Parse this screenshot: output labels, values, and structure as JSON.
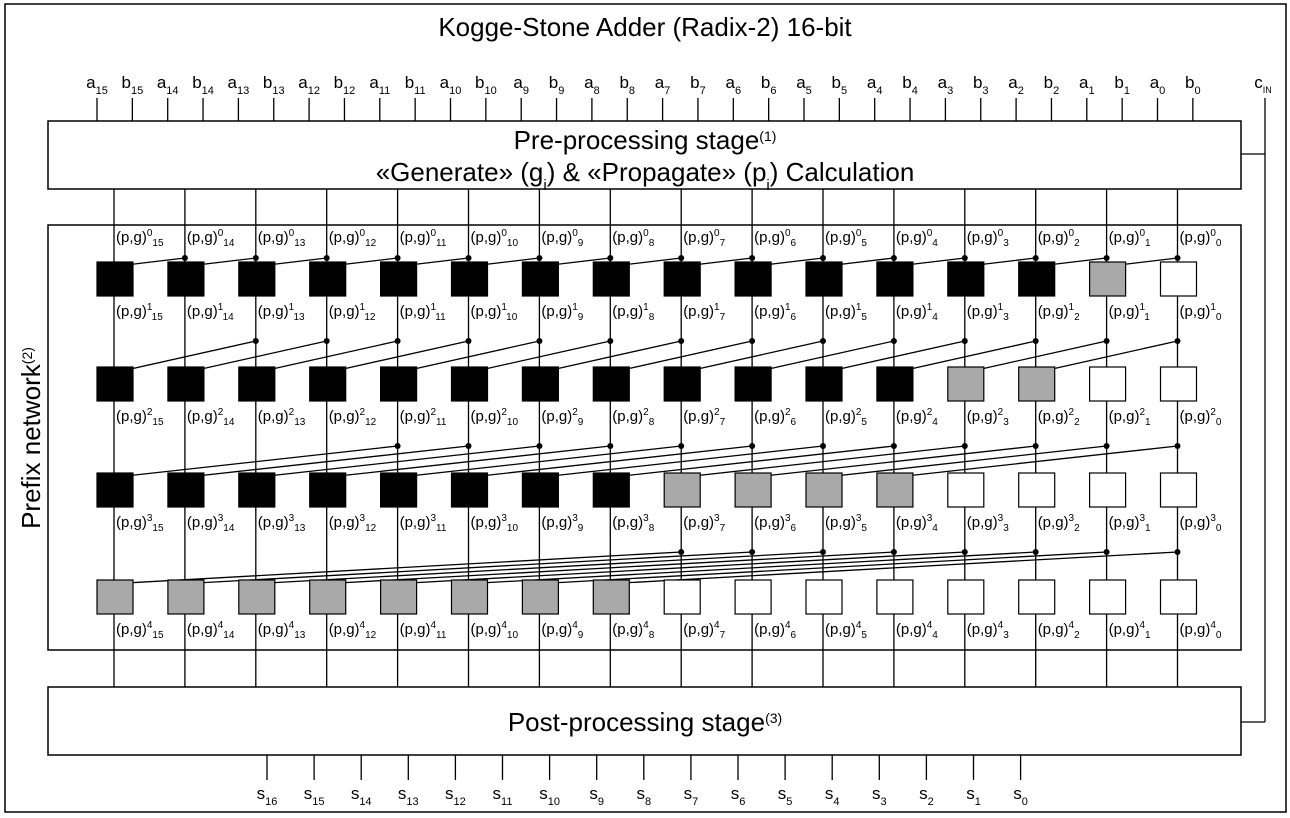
{
  "title": "Kogge-Stone Adder (Radix-2) 16-bit",
  "inputs": [
    {
      "letter": "a",
      "sub": "15"
    },
    {
      "letter": "b",
      "sub": "15"
    },
    {
      "letter": "a",
      "sub": "14"
    },
    {
      "letter": "b",
      "sub": "14"
    },
    {
      "letter": "a",
      "sub": "13"
    },
    {
      "letter": "b",
      "sub": "13"
    },
    {
      "letter": "a",
      "sub": "12"
    },
    {
      "letter": "b",
      "sub": "12"
    },
    {
      "letter": "a",
      "sub": "11"
    },
    {
      "letter": "b",
      "sub": "11"
    },
    {
      "letter": "a",
      "sub": "10"
    },
    {
      "letter": "b",
      "sub": "10"
    },
    {
      "letter": "a",
      "sub": "9"
    },
    {
      "letter": "b",
      "sub": "9"
    },
    {
      "letter": "a",
      "sub": "8"
    },
    {
      "letter": "b",
      "sub": "8"
    },
    {
      "letter": "a",
      "sub": "7"
    },
    {
      "letter": "b",
      "sub": "7"
    },
    {
      "letter": "a",
      "sub": "6"
    },
    {
      "letter": "b",
      "sub": "6"
    },
    {
      "letter": "a",
      "sub": "5"
    },
    {
      "letter": "b",
      "sub": "5"
    },
    {
      "letter": "a",
      "sub": "4"
    },
    {
      "letter": "b",
      "sub": "4"
    },
    {
      "letter": "a",
      "sub": "3"
    },
    {
      "letter": "b",
      "sub": "3"
    },
    {
      "letter": "a",
      "sub": "2"
    },
    {
      "letter": "b",
      "sub": "2"
    },
    {
      "letter": "a",
      "sub": "1"
    },
    {
      "letter": "b",
      "sub": "1"
    },
    {
      "letter": "a",
      "sub": "0"
    },
    {
      "letter": "b",
      "sub": "0"
    }
  ],
  "carry_in": {
    "letter": "c",
    "sub": "IN"
  },
  "pre_stage": {
    "line1": "Pre-processing stage",
    "line1_sup": "(1)",
    "line2_parts": [
      "«Generate» (g",
      "i",
      ") & «Propagate» (p",
      "i",
      ") Calculation"
    ]
  },
  "prefix": {
    "side_label": "Prefix network",
    "side_label_sup": "(2)",
    "label_text": "(p,g)",
    "bit_subscripts": [
      "15",
      "14",
      "13",
      "12",
      "11",
      "10",
      "9",
      "8",
      "7",
      "6",
      "5",
      "4",
      "3",
      "2",
      "1",
      "0"
    ],
    "levels": [
      "0",
      "1",
      "2",
      "3",
      "4"
    ],
    "node_rows": [
      {
        "level": 1,
        "span": 1,
        "cells": [
          "black",
          "black",
          "black",
          "black",
          "black",
          "black",
          "black",
          "black",
          "black",
          "black",
          "black",
          "black",
          "black",
          "black",
          "gray",
          "white"
        ]
      },
      {
        "level": 2,
        "span": 2,
        "cells": [
          "black",
          "black",
          "black",
          "black",
          "black",
          "black",
          "black",
          "black",
          "black",
          "black",
          "black",
          "black",
          "gray",
          "gray",
          "white",
          "white"
        ]
      },
      {
        "level": 3,
        "span": 4,
        "cells": [
          "black",
          "black",
          "black",
          "black",
          "black",
          "black",
          "black",
          "black",
          "gray",
          "gray",
          "gray",
          "gray",
          "white",
          "white",
          "white",
          "white"
        ]
      },
      {
        "level": 4,
        "span": 8,
        "cells": [
          "gray",
          "gray",
          "gray",
          "gray",
          "gray",
          "gray",
          "gray",
          "gray",
          "white",
          "white",
          "white",
          "white",
          "white",
          "white",
          "white",
          "white"
        ]
      }
    ]
  },
  "post_stage": {
    "label": "Post-processing stage",
    "label_sup": "(3)"
  },
  "outputs": [
    {
      "letter": "s",
      "sub": "16"
    },
    {
      "letter": "s",
      "sub": "15"
    },
    {
      "letter": "s",
      "sub": "14"
    },
    {
      "letter": "s",
      "sub": "13"
    },
    {
      "letter": "s",
      "sub": "12"
    },
    {
      "letter": "s",
      "sub": "11"
    },
    {
      "letter": "s",
      "sub": "10"
    },
    {
      "letter": "s",
      "sub": "9"
    },
    {
      "letter": "s",
      "sub": "8"
    },
    {
      "letter": "s",
      "sub": "7"
    },
    {
      "letter": "s",
      "sub": "6"
    },
    {
      "letter": "s",
      "sub": "5"
    },
    {
      "letter": "s",
      "sub": "4"
    },
    {
      "letter": "s",
      "sub": "3"
    },
    {
      "letter": "s",
      "sub": "2"
    },
    {
      "letter": "s",
      "sub": "1"
    },
    {
      "letter": "s",
      "sub": "0"
    }
  ],
  "colors": {
    "black": "#000000",
    "gray": "#a9a9a9",
    "white": "#ffffff",
    "line": "#000000"
  }
}
